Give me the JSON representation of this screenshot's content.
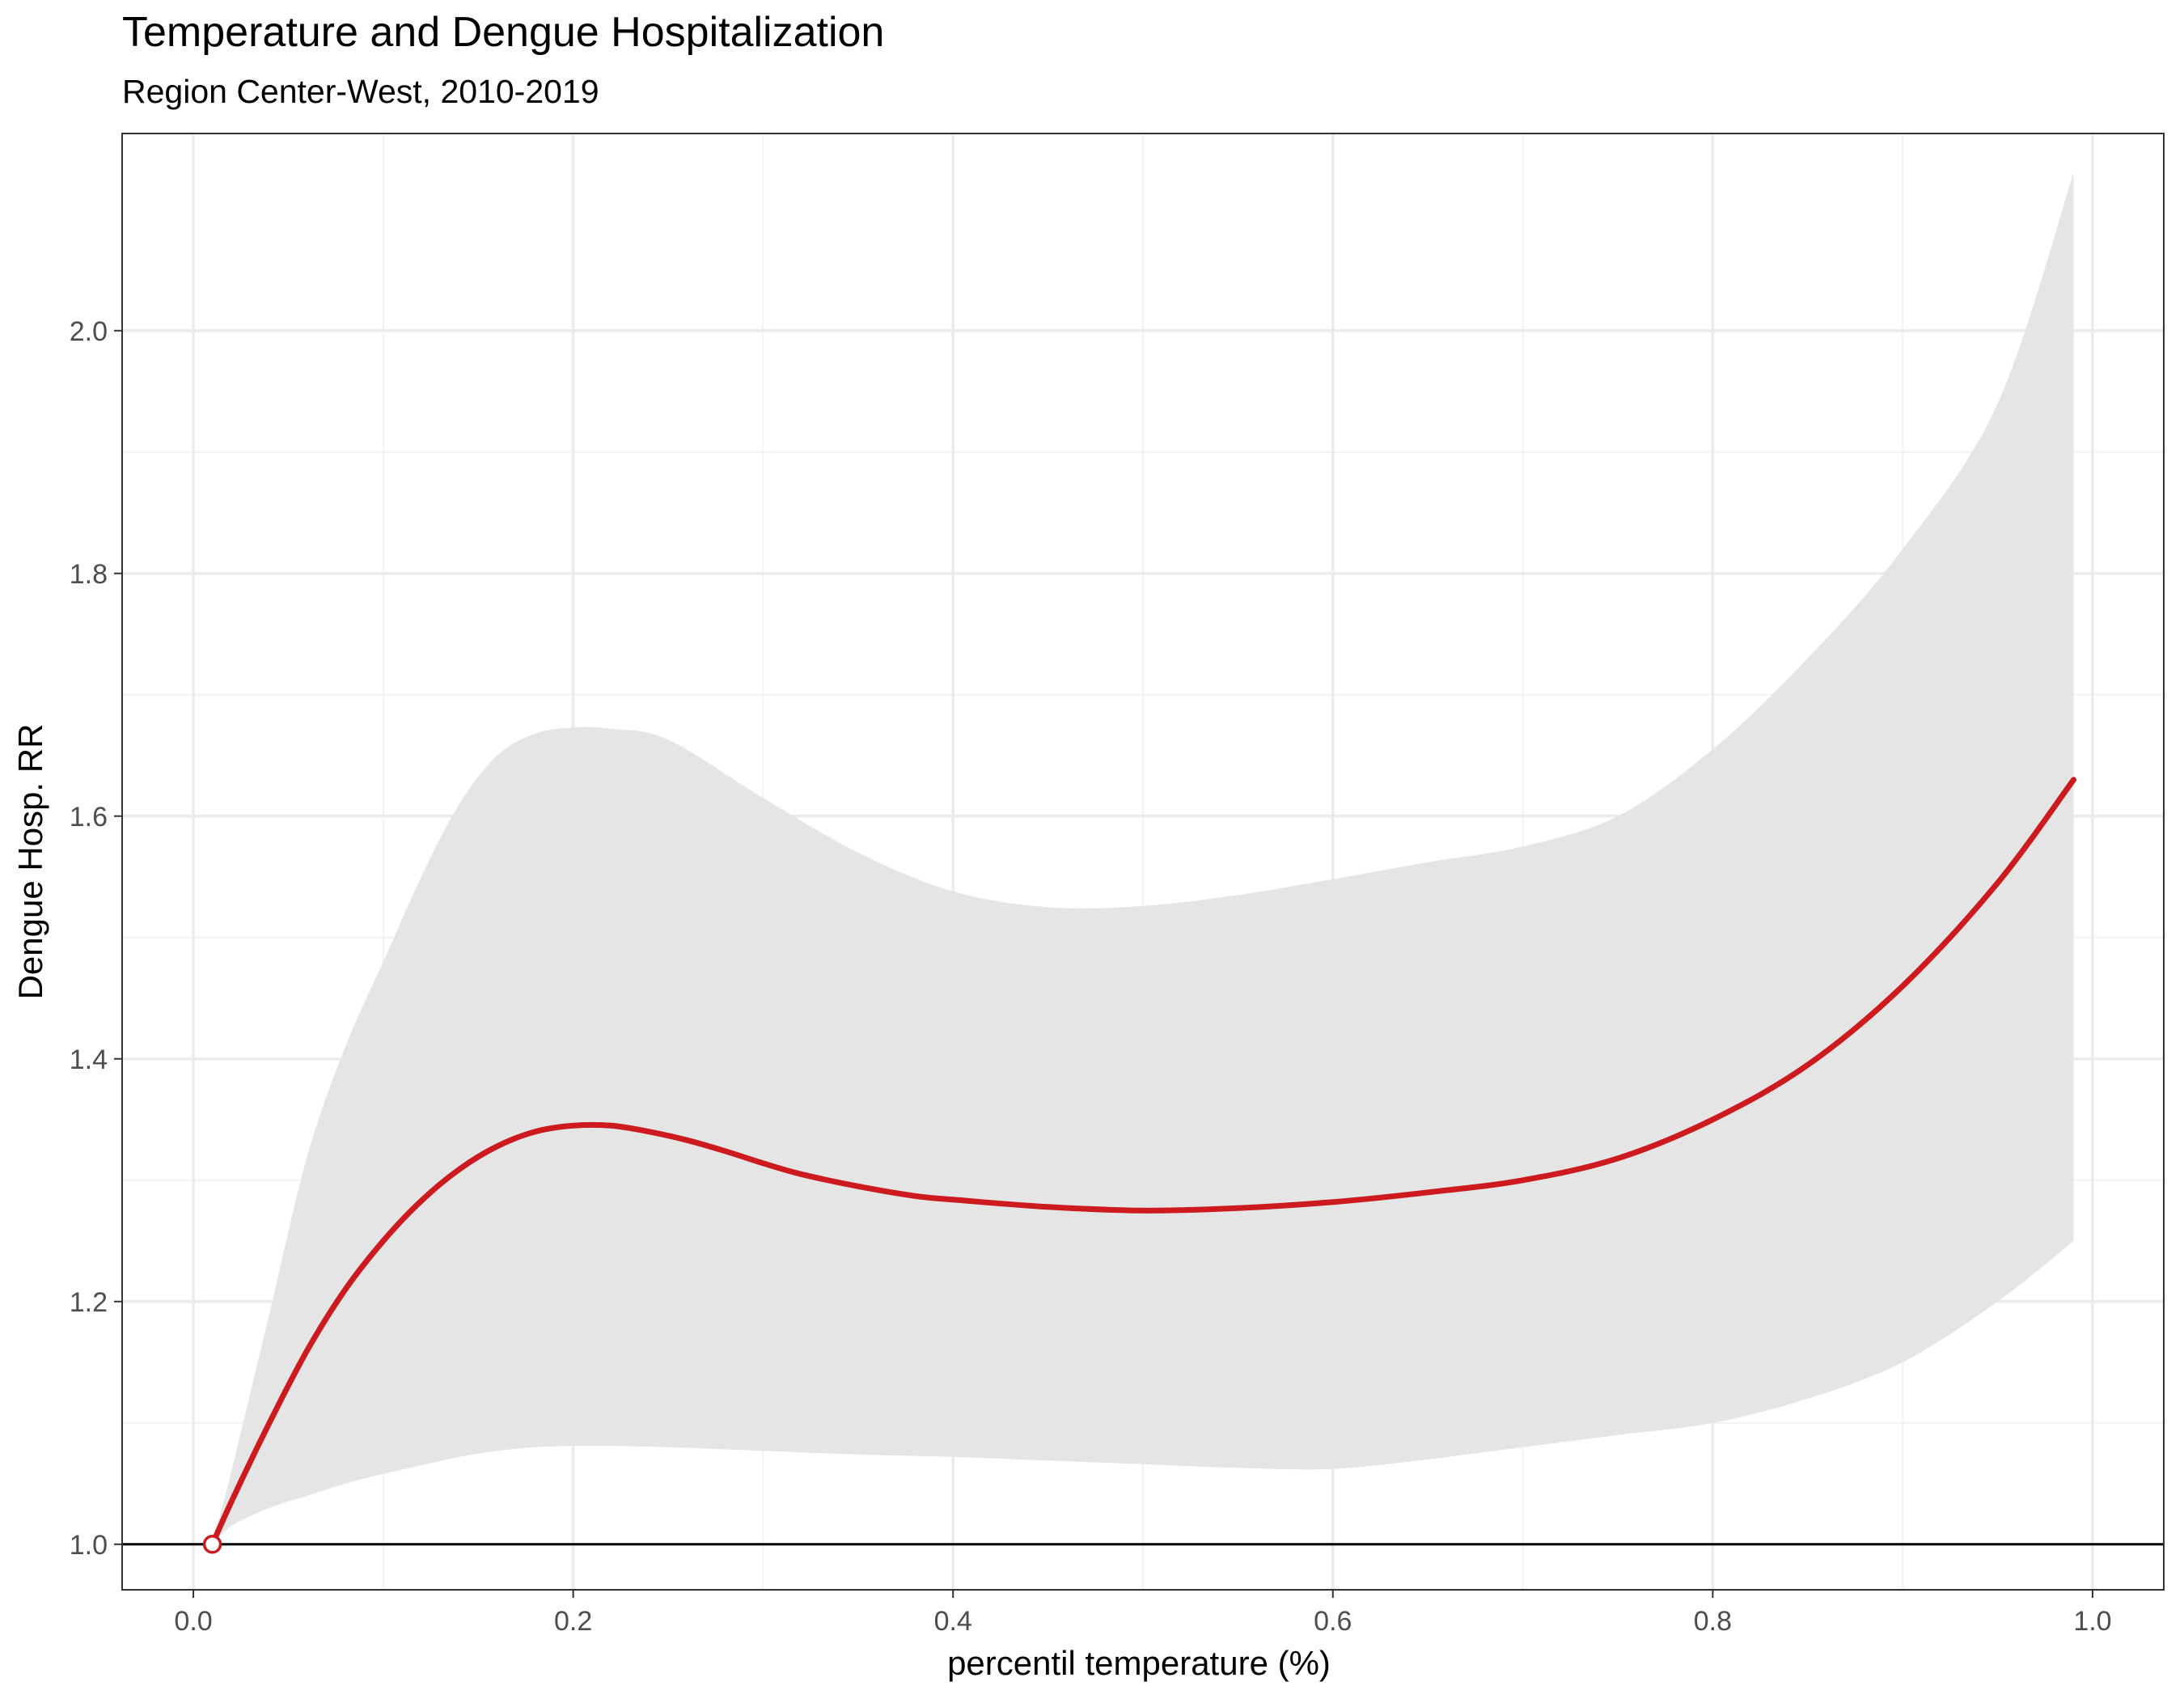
{
  "chart_data": {
    "type": "line",
    "title": "Temperature and Dengue Hospitalization",
    "subtitle": "Region Center-West, 2010-2019",
    "xlabel": "percentil temperature (%)",
    "ylabel": "Dengue Hosp. RR",
    "xlim": [
      -0.0375,
      1.0375
    ],
    "ylim": [
      0.9625,
      2.1625
    ],
    "xticks": [
      "0.0",
      "0.2",
      "0.4",
      "0.6",
      "0.8",
      "1.0"
    ],
    "yticks": [
      "1.0",
      "1.2",
      "1.4",
      "1.6",
      "1.8",
      "2.0"
    ],
    "grid": true,
    "reference_line": 1.0,
    "series": [
      {
        "x": [
          0.01,
          0.02,
          0.04,
          0.06,
          0.08,
          0.1,
          0.12,
          0.14,
          0.16,
          0.18,
          0.2,
          0.22,
          0.24,
          0.26,
          0.28,
          0.3,
          0.32,
          0.35,
          0.38,
          0.4,
          0.45,
          0.5,
          0.55,
          0.6,
          0.65,
          0.7,
          0.75,
          0.8,
          0.85,
          0.9,
          0.95,
          0.99
        ],
        "y": [
          1.0,
          1.035,
          1.1,
          1.16,
          1.21,
          1.25,
          1.283,
          1.309,
          1.328,
          1.34,
          1.345,
          1.345,
          1.34,
          1.333,
          1.324,
          1.314,
          1.305,
          1.295,
          1.287,
          1.284,
          1.278,
          1.275,
          1.277,
          1.282,
          1.29,
          1.3,
          1.318,
          1.35,
          1.395,
          1.46,
          1.545,
          1.63
        ],
        "color": "#cc1a1e"
      }
    ],
    "confidence_band": {
      "x": [
        0.01,
        0.02,
        0.04,
        0.06,
        0.08,
        0.1,
        0.12,
        0.14,
        0.16,
        0.18,
        0.2,
        0.22,
        0.25,
        0.3,
        0.35,
        0.4,
        0.45,
        0.5,
        0.55,
        0.6,
        0.65,
        0.7,
        0.75,
        0.8,
        0.85,
        0.9,
        0.95,
        0.99
      ],
      "lower": [
        1.0,
        1.015,
        1.03,
        1.04,
        1.05,
        1.058,
        1.065,
        1.072,
        1.077,
        1.08,
        1.081,
        1.081,
        1.08,
        1.077,
        1.074,
        1.072,
        1.069,
        1.066,
        1.063,
        1.062,
        1.07,
        1.08,
        1.09,
        1.1,
        1.12,
        1.15,
        1.2,
        1.25
      ],
      "upper": [
        1.0,
        1.06,
        1.19,
        1.32,
        1.41,
        1.48,
        1.55,
        1.61,
        1.65,
        1.668,
        1.673,
        1.672,
        1.663,
        1.615,
        1.57,
        1.538,
        1.525,
        1.526,
        1.535,
        1.548,
        1.562,
        1.575,
        1.6,
        1.655,
        1.73,
        1.82,
        1.94,
        2.13
      ],
      "color": "#e5e5e5"
    },
    "reference_point": {
      "x": 0.01,
      "y": 1.0
    }
  }
}
